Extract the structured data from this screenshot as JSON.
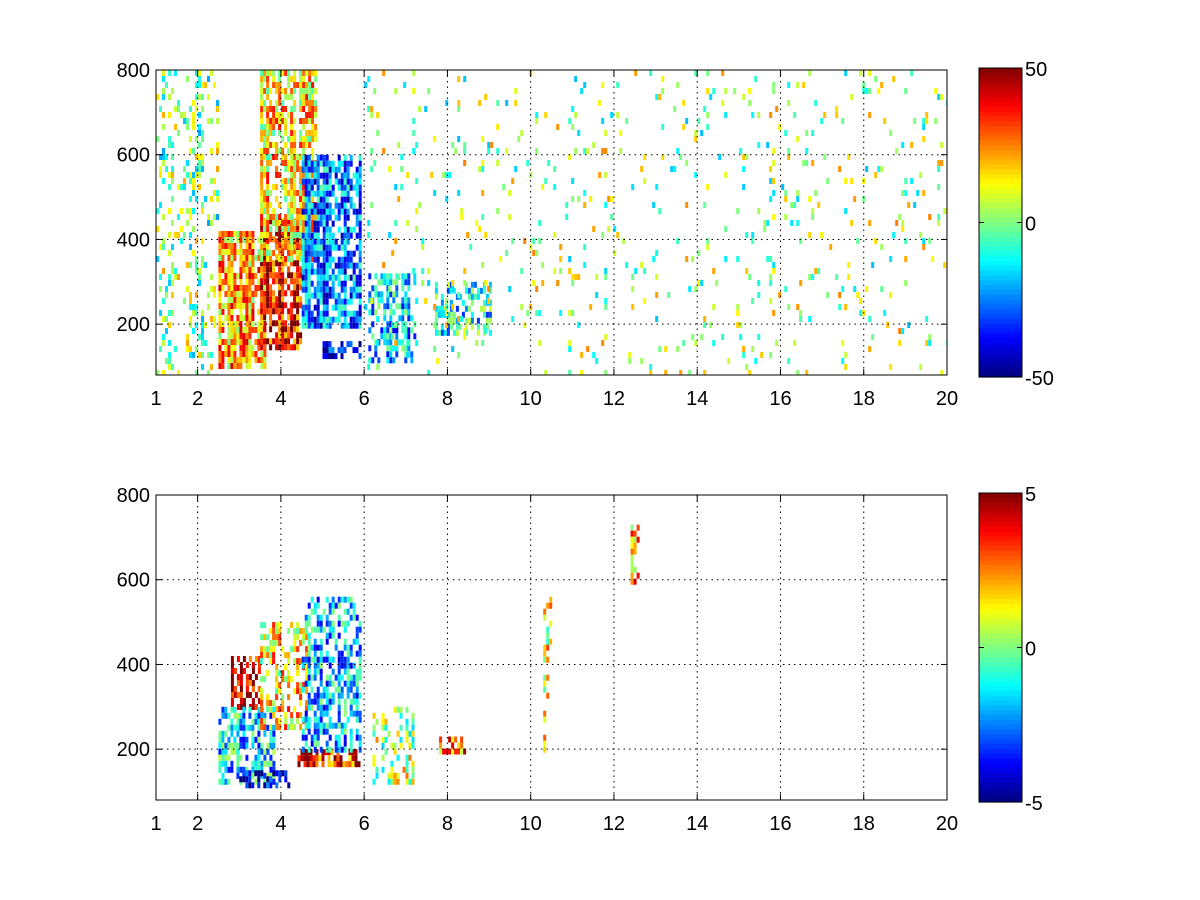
{
  "chart_data": [
    {
      "type": "heatmap",
      "title": "",
      "xlabel": "",
      "ylabel": "",
      "xlim": [
        1,
        20
      ],
      "ylim": [
        80,
        800
      ],
      "grid": true,
      "x_ticks": [
        1,
        2,
        4,
        6,
        8,
        10,
        12,
        14,
        16,
        18,
        20
      ],
      "x_tick_labels": [
        "1",
        "2",
        "4",
        "6",
        "8",
        "10",
        "12",
        "14",
        "16",
        "18",
        "20"
      ],
      "y_ticks": [
        200,
        400,
        600,
        800
      ],
      "y_tick_labels": [
        "200",
        "400",
        "600",
        "800"
      ],
      "colormap": "jet",
      "clim": [
        -50,
        50
      ],
      "colorbar": {
        "placement": "right",
        "ticks": [
          -50,
          0,
          50
        ],
        "tick_labels": [
          "-50",
          "0",
          "50"
        ]
      },
      "regions": [
        {
          "x": [
            2.5,
            3.6
          ],
          "y": [
            100,
            420
          ],
          "level": 20,
          "density": 0.9,
          "note_level": "yellow-orange"
        },
        {
          "x": [
            3.5,
            4.5
          ],
          "y": [
            150,
            450
          ],
          "level": 38,
          "density": 0.9
        },
        {
          "x": [
            3.5,
            4.8
          ],
          "y": [
            350,
            800
          ],
          "level": 15,
          "density": 0.7
        },
        {
          "x": [
            4.5,
            5.9
          ],
          "y": [
            200,
            600
          ],
          "level": -25,
          "density": 0.85
        },
        {
          "x": [
            5.0,
            5.9
          ],
          "y": [
            130,
            160
          ],
          "level": -40,
          "density": 0.9
        },
        {
          "x": [
            6.1,
            7.2
          ],
          "y": [
            120,
            320
          ],
          "level": -18,
          "density": 0.6
        },
        {
          "x": [
            7.7,
            9.0
          ],
          "y": [
            180,
            300
          ],
          "level": -12,
          "density": 0.5
        },
        {
          "x": [
            1.0,
            2.5
          ],
          "y": [
            80,
            800
          ],
          "level": 0,
          "density": 0.25
        },
        {
          "x": [
            6.0,
            20.0
          ],
          "y": [
            80,
            800
          ],
          "level": 3,
          "density": 0.07
        }
      ]
    },
    {
      "type": "heatmap",
      "title": "",
      "xlabel": "",
      "ylabel": "",
      "xlim": [
        1,
        20
      ],
      "ylim": [
        80,
        800
      ],
      "grid": true,
      "x_ticks": [
        1,
        2,
        4,
        6,
        8,
        10,
        12,
        14,
        16,
        18,
        20
      ],
      "x_tick_labels": [
        "1",
        "2",
        "4",
        "6",
        "8",
        "10",
        "12",
        "14",
        "16",
        "18",
        "20"
      ],
      "y_ticks": [
        200,
        400,
        600,
        800
      ],
      "y_tick_labels": [
        "200",
        "400",
        "600",
        "800"
      ],
      "colormap": "jet",
      "clim": [
        -5,
        5
      ],
      "colorbar": {
        "placement": "right",
        "ticks": [
          -5,
          0,
          5
        ],
        "tick_labels": [
          "-5",
          "0",
          "5"
        ]
      },
      "regions": [
        {
          "x": [
            2.8,
            3.5
          ],
          "y": [
            300,
            420
          ],
          "level": 4.5,
          "density": 0.7
        },
        {
          "x": [
            2.5,
            3.8
          ],
          "y": [
            120,
            300
          ],
          "level": -1.5,
          "density": 0.6
        },
        {
          "x": [
            3.5,
            4.6
          ],
          "y": [
            250,
            500
          ],
          "level": 1.5,
          "density": 0.6
        },
        {
          "x": [
            4.4,
            5.9
          ],
          "y": [
            160,
            200
          ],
          "level": 3.5,
          "density": 0.8
        },
        {
          "x": [
            4.5,
            5.9
          ],
          "y": [
            200,
            560
          ],
          "level": -2.0,
          "density": 0.6
        },
        {
          "x": [
            3.0,
            4.2
          ],
          "y": [
            120,
            150
          ],
          "level": -4.5,
          "density": 0.6
        },
        {
          "x": [
            6.2,
            7.2
          ],
          "y": [
            130,
            300
          ],
          "level": 0.5,
          "density": 0.5
        },
        {
          "x": [
            7.8,
            8.4
          ],
          "y": [
            200,
            230
          ],
          "level": 2.5,
          "density": 0.8
        },
        {
          "x": [
            10.3,
            10.45
          ],
          "y": [
            200,
            560
          ],
          "level": 1.0,
          "density": 0.4
        },
        {
          "x": [
            12.4,
            12.6
          ],
          "y": [
            600,
            730
          ],
          "level": 2.0,
          "density": 0.6
        }
      ]
    }
  ]
}
